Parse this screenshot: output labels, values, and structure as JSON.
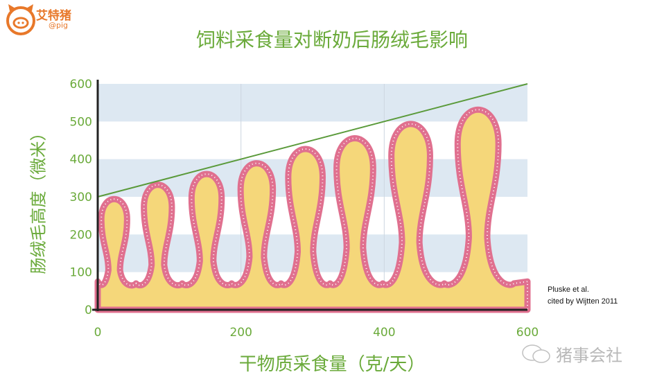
{
  "header": {
    "brand": "艾特猪",
    "handle": "@pig"
  },
  "watermark": "猪事会社",
  "citation": [
    "Pluske et al.",
    "cited by Wijtten 2011"
  ],
  "colors": {
    "title": "#6aaa3a",
    "villus_fill": "#f5d77a",
    "villus_outline": "#e0708f",
    "trend_line": "#5a9a3a",
    "band": "#dde8f2",
    "brand": "#e8782a"
  },
  "chart_data": {
    "type": "line",
    "title": "饲料采食量对断奶后肠绒毛影响",
    "xlabel": "干物质采食量（克/天）",
    "ylabel": "肠绒毛高度（微米）",
    "xlim": [
      0,
      600
    ],
    "ylim": [
      0,
      600
    ],
    "xticks": [
      0,
      200,
      400,
      600
    ],
    "yticks": [
      0,
      100,
      200,
      300,
      400,
      500,
      600
    ],
    "grid": true,
    "trend_line": {
      "x": [
        0,
        600
      ],
      "y": [
        300,
        600
      ]
    },
    "villi": {
      "x": [
        23,
        84,
        152,
        222,
        290,
        359,
        437,
        531
      ],
      "height": [
        300,
        340,
        370,
        400,
        440,
        470,
        510,
        550
      ]
    }
  }
}
